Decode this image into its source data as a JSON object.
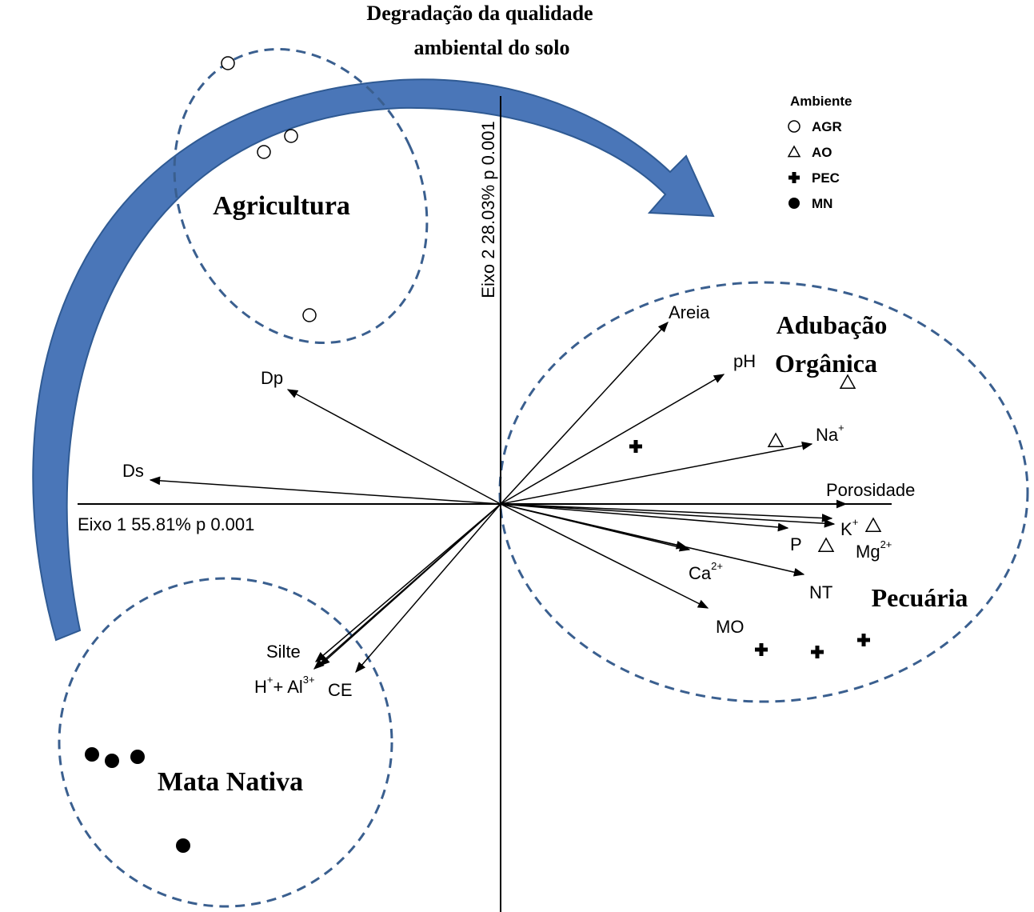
{
  "title": [
    "Degradação da qualidade",
    "ambiental do solo"
  ],
  "axes": {
    "x_label": "Eixo 1  55.81% p 0.001",
    "y_label": "Eixo 2  28.03% p 0.001"
  },
  "legend": {
    "title": "Ambiente",
    "items": [
      "AGR",
      "AO",
      "PEC",
      "MN"
    ]
  },
  "groups": [
    "Agricultura",
    "Adubação",
    "Orgânica",
    "Pecuária",
    "Mata Nativa"
  ],
  "variables": [
    {
      "label": "Areia"
    },
    {
      "label": "pH"
    },
    {
      "label": "Na",
      "sup": "+"
    },
    {
      "label": "Porosidade"
    },
    {
      "label": "K",
      "sup": "+"
    },
    {
      "label": "Mg",
      "sup": "2+"
    },
    {
      "label": "P"
    },
    {
      "label": "Ca",
      "sup": "2+"
    },
    {
      "label": "NT"
    },
    {
      "label": "MO"
    },
    {
      "label": "Silte"
    },
    {
      "label": "H",
      "sup": "+",
      "label2": "+ Al",
      "sup2": "3+"
    },
    {
      "label": "CE"
    },
    {
      "label": "Ds"
    },
    {
      "label": "Dp"
    }
  ]
}
